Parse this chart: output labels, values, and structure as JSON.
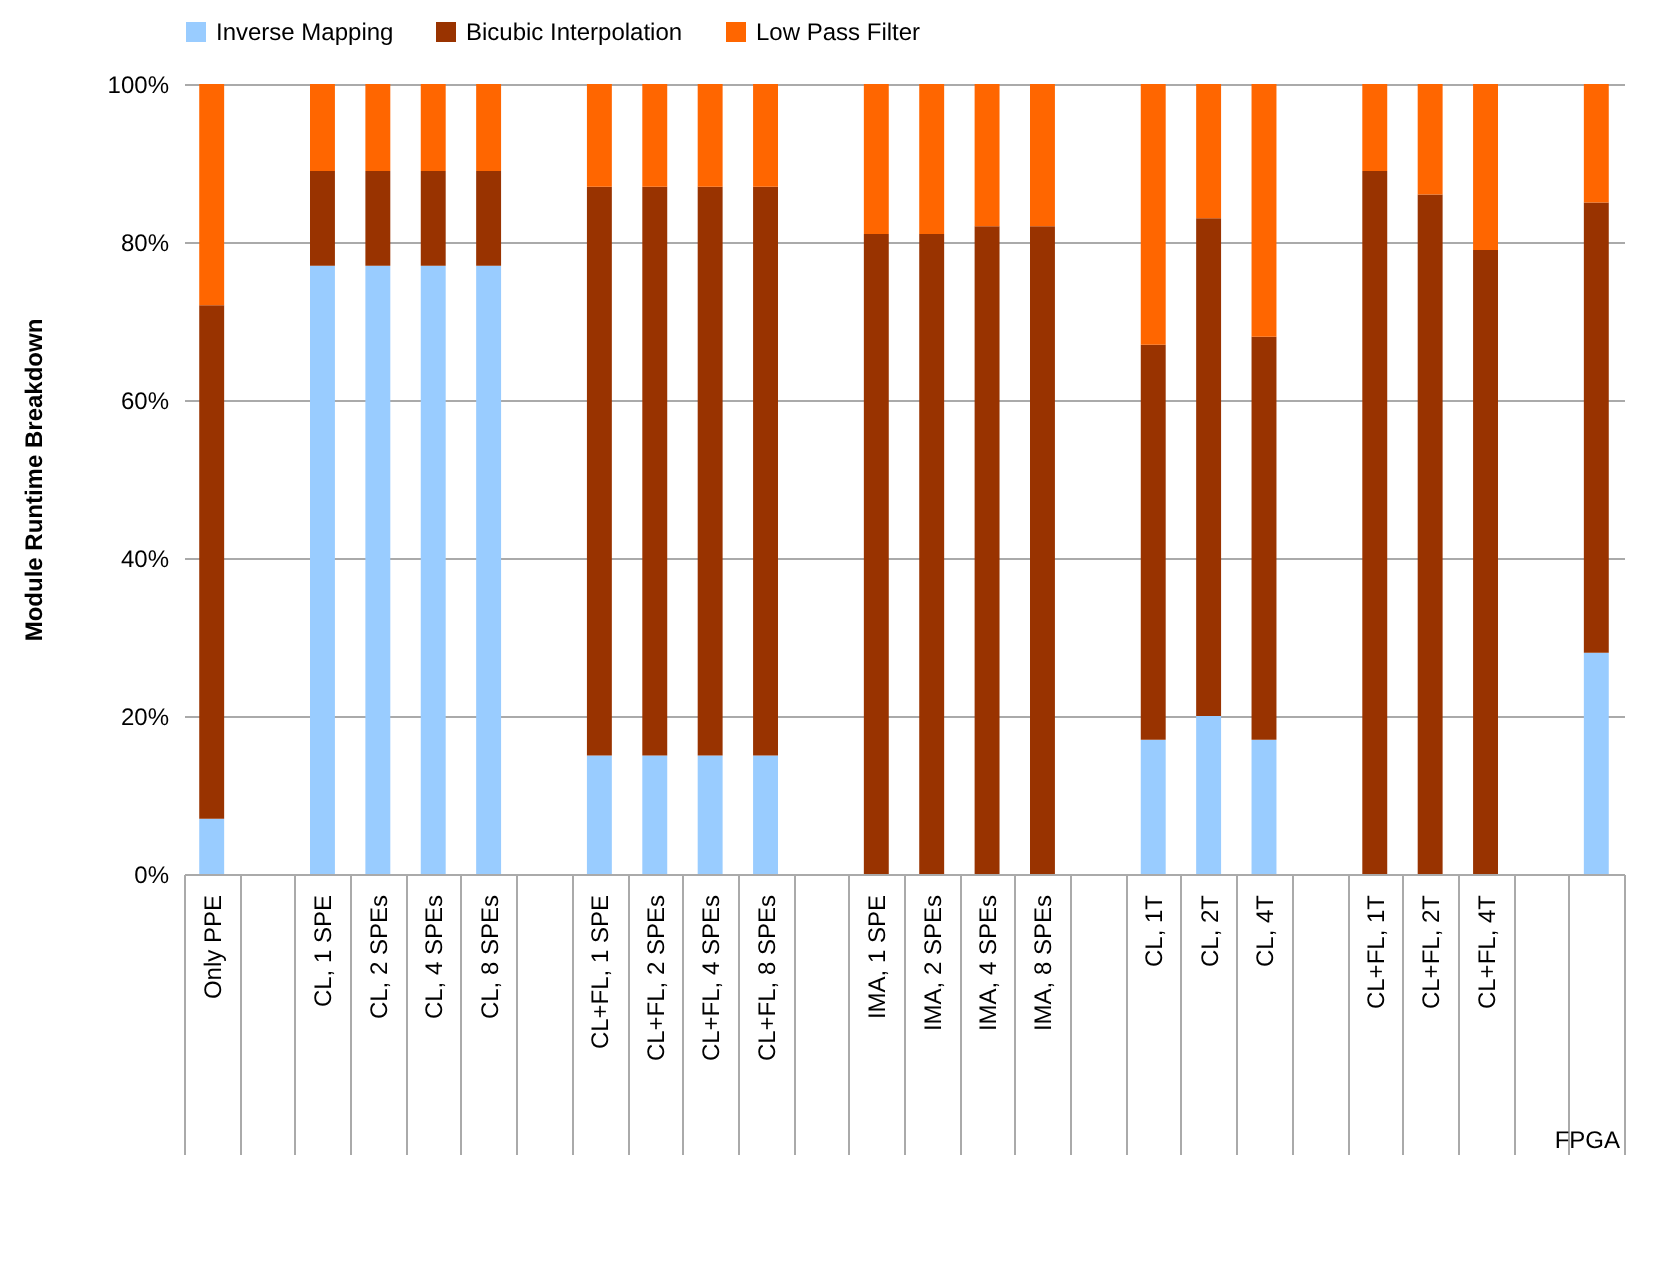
{
  "chart_data": {
    "type": "bar",
    "stacked": true,
    "ylabel": "Module Runtime Breakdown",
    "categories": [
      "Only PPE",
      null,
      "CL, 1 SPE",
      "CL, 2 SPEs",
      "CL, 4 SPEs",
      "CL, 8 SPEs",
      null,
      "CL+FL, 1 SPE",
      "CL+FL, 2 SPEs",
      "CL+FL, 4 SPEs",
      "CL+FL, 8 SPEs",
      null,
      "IMA, 1 SPE",
      "IMA, 2 SPEs",
      "IMA, 4 SPEs",
      "IMA, 8 SPEs",
      null,
      "CL, 1T",
      "CL, 2T",
      "CL, 4T",
      null,
      "CL+FL, 1T",
      "CL+FL, 2T",
      "CL+FL, 4T",
      null,
      null
    ],
    "series": [
      {
        "name": "Inverse Mapping",
        "color": "#99ccff",
        "values": [
          7,
          null,
          77,
          77,
          77,
          77,
          null,
          15,
          15,
          15,
          15,
          null,
          0,
          0,
          0,
          0,
          null,
          17,
          20,
          17,
          null,
          0,
          0,
          0,
          null,
          28
        ]
      },
      {
        "name": "Bicubic Interpolation",
        "color": "#993300",
        "values": [
          65,
          null,
          12,
          12,
          12,
          12,
          null,
          72,
          72,
          72,
          72,
          null,
          81,
          81,
          82,
          82,
          null,
          50,
          63,
          51,
          null,
          89,
          86,
          79,
          null,
          57
        ]
      },
      {
        "name": "Low Pass Filter",
        "color": "#ff6600",
        "values": [
          28,
          null,
          11,
          11,
          11,
          11,
          null,
          13,
          13,
          13,
          13,
          null,
          19,
          19,
          18,
          18,
          null,
          33,
          17,
          32,
          null,
          11,
          14,
          21,
          null,
          15
        ]
      }
    ],
    "ylim": [
      0,
      100
    ],
    "yticks": [
      {
        "value": 0,
        "label": "0%"
      },
      {
        "value": 20,
        "label": "20%"
      },
      {
        "value": 40,
        "label": "40%"
      },
      {
        "value": 60,
        "label": "60%"
      },
      {
        "value": 80,
        "label": "80%"
      },
      {
        "value": 100,
        "label": "100%"
      }
    ],
    "grid": "y",
    "legend": "top",
    "annotations": [
      "FPGA"
    ]
  }
}
